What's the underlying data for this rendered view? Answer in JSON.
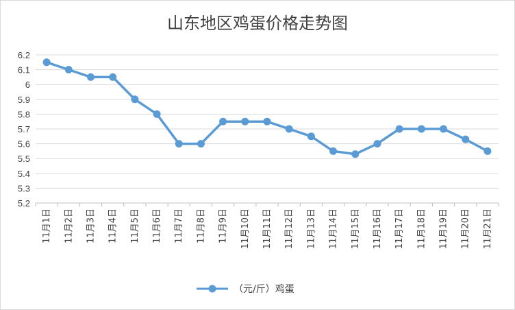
{
  "chart_data": {
    "type": "line",
    "title": "山东地区鸡蛋价格走势图",
    "xlabel": "",
    "ylabel": "",
    "ylim": [
      5.2,
      6.2
    ],
    "yticks": [
      5.2,
      5.3,
      5.4,
      5.5,
      5.6,
      5.7,
      5.8,
      5.9,
      6,
      6.1,
      6.2
    ],
    "categories": [
      "11月1日",
      "11月2日",
      "11月3日",
      "11月4日",
      "11月5日",
      "11月6日",
      "11月7日",
      "11月8日",
      "11月9日",
      "11月10日",
      "11月11日",
      "11月12日",
      "11月13日",
      "11月14日",
      "11月15日",
      "11月16日",
      "11月17日",
      "11月18日",
      "11月19日",
      "11月20日",
      "11月21日"
    ],
    "series": [
      {
        "name": "（元/斤）鸡蛋",
        "color": "#5B9BD5",
        "values": [
          6.15,
          6.1,
          6.05,
          6.05,
          5.9,
          5.8,
          5.6,
          5.6,
          5.75,
          5.75,
          5.75,
          5.7,
          5.65,
          5.55,
          5.53,
          5.6,
          5.7,
          5.7,
          5.7,
          5.63,
          5.55
        ]
      }
    ],
    "grid": true,
    "legend_position": "bottom"
  }
}
